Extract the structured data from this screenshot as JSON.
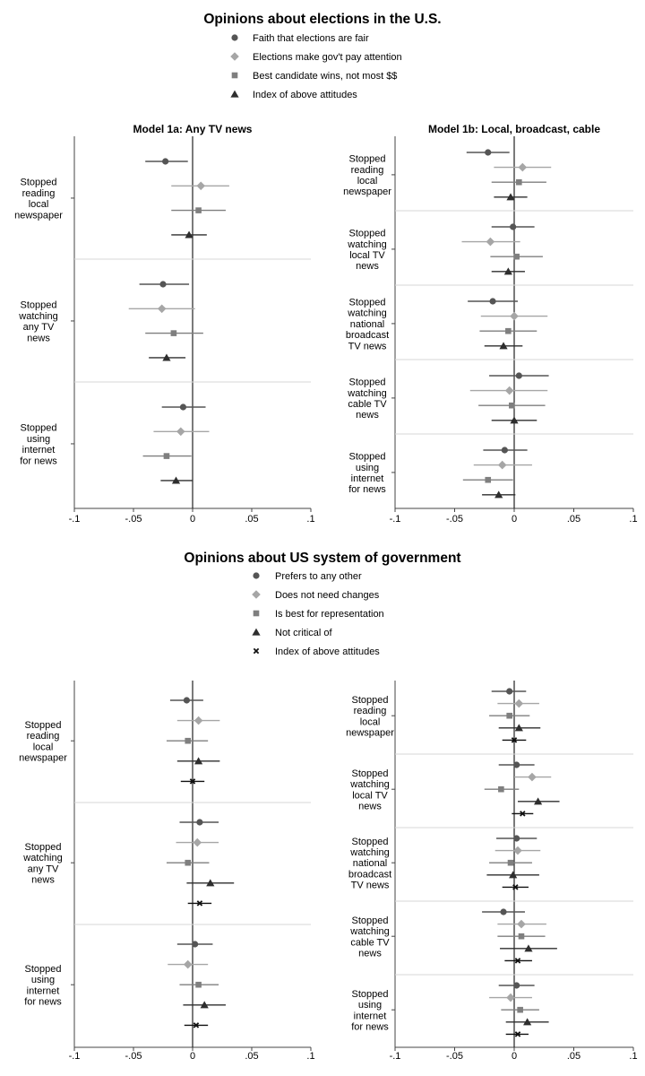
{
  "colors": {
    "circle": "#555555",
    "diamond": "#a6a6a6",
    "square": "#7f7f7f",
    "triangle": "#2e2e2e",
    "cross": "#111111",
    "zero": "#222222",
    "frame": "#444444",
    "sep": "#d7d7d7"
  },
  "chart_data": [
    {
      "type": "scatter",
      "style": "coefficient-plot",
      "title": "Opinions about elections in the U.S.",
      "subtitle": "Model 1a: Any TV news",
      "legend": [
        {
          "name": "Faith that elections are fair",
          "marker": "circle"
        },
        {
          "name": "Elections make gov't pay attention",
          "marker": "diamond"
        },
        {
          "name": "Best candidate wins, not most $$",
          "marker": "square"
        },
        {
          "name": "Index of above attitudes",
          "marker": "triangle"
        }
      ],
      "xlim": [
        -0.1,
        0.1
      ],
      "ticks": [
        "-.1",
        "-.05",
        "0",
        ".05",
        ".1"
      ],
      "groups": [
        {
          "label": [
            "Stopped",
            "reading",
            "local",
            "newspaper"
          ],
          "points": [
            {
              "marker": "circle",
              "est": -0.023,
              "lo": -0.04,
              "hi": -0.004
            },
            {
              "marker": "diamond",
              "est": 0.007,
              "lo": -0.018,
              "hi": 0.031
            },
            {
              "marker": "square",
              "est": 0.005,
              "lo": -0.018,
              "hi": 0.028
            },
            {
              "marker": "triangle",
              "est": -0.003,
              "lo": -0.018,
              "hi": 0.012
            }
          ]
        },
        {
          "label": [
            "Stopped",
            "watching",
            "any TV",
            "news"
          ],
          "points": [
            {
              "marker": "circle",
              "est": -0.025,
              "lo": -0.045,
              "hi": -0.003
            },
            {
              "marker": "diamond",
              "est": -0.026,
              "lo": -0.054,
              "hi": 0.002
            },
            {
              "marker": "square",
              "est": -0.016,
              "lo": -0.04,
              "hi": 0.009
            },
            {
              "marker": "triangle",
              "est": -0.022,
              "lo": -0.037,
              "hi": -0.006
            }
          ]
        },
        {
          "label": [
            "Stopped",
            "using",
            "internet",
            "for news"
          ],
          "points": [
            {
              "marker": "circle",
              "est": -0.008,
              "lo": -0.026,
              "hi": 0.011
            },
            {
              "marker": "diamond",
              "est": -0.01,
              "lo": -0.033,
              "hi": 0.014
            },
            {
              "marker": "square",
              "est": -0.022,
              "lo": -0.042,
              "hi": -0.001
            },
            {
              "marker": "triangle",
              "est": -0.014,
              "lo": -0.027,
              "hi": 0.0
            }
          ]
        }
      ]
    },
    {
      "type": "scatter",
      "style": "coefficient-plot",
      "subtitle": "Model 1b: Local, broadcast, cable",
      "xlim": [
        -0.1,
        0.1
      ],
      "ticks": [
        "-.1",
        "-.05",
        "0",
        ".05",
        ".1"
      ],
      "groups": [
        {
          "label": [
            "Stopped",
            "reading",
            "local",
            "newspaper"
          ],
          "points": [
            {
              "marker": "circle",
              "est": -0.022,
              "lo": -0.04,
              "hi": -0.004
            },
            {
              "marker": "diamond",
              "est": 0.007,
              "lo": -0.017,
              "hi": 0.031
            },
            {
              "marker": "square",
              "est": 0.004,
              "lo": -0.019,
              "hi": 0.027
            },
            {
              "marker": "triangle",
              "est": -0.003,
              "lo": -0.017,
              "hi": 0.011
            }
          ]
        },
        {
          "label": [
            "Stopped",
            "watching",
            "local TV",
            "news"
          ],
          "points": [
            {
              "marker": "circle",
              "est": -0.001,
              "lo": -0.019,
              "hi": 0.017
            },
            {
              "marker": "diamond",
              "est": -0.02,
              "lo": -0.044,
              "hi": 0.005
            },
            {
              "marker": "square",
              "est": 0.002,
              "lo": -0.02,
              "hi": 0.024
            },
            {
              "marker": "triangle",
              "est": -0.005,
              "lo": -0.019,
              "hi": 0.009
            }
          ]
        },
        {
          "label": [
            "Stopped",
            "watching",
            "national",
            "broadcast",
            "TV news"
          ],
          "points": [
            {
              "marker": "circle",
              "est": -0.018,
              "lo": -0.039,
              "hi": 0.003
            },
            {
              "marker": "diamond",
              "est": 0.0,
              "lo": -0.028,
              "hi": 0.028
            },
            {
              "marker": "square",
              "est": -0.005,
              "lo": -0.029,
              "hi": 0.019
            },
            {
              "marker": "triangle",
              "est": -0.009,
              "lo": -0.025,
              "hi": 0.007
            }
          ]
        },
        {
          "label": [
            "Stopped",
            "watching",
            "cable TV",
            "news"
          ],
          "points": [
            {
              "marker": "circle",
              "est": 0.004,
              "lo": -0.021,
              "hi": 0.029
            },
            {
              "marker": "diamond",
              "est": -0.004,
              "lo": -0.037,
              "hi": 0.028
            },
            {
              "marker": "square",
              "est": -0.002,
              "lo": -0.03,
              "hi": 0.026
            },
            {
              "marker": "triangle",
              "est": 0.0,
              "lo": -0.019,
              "hi": 0.019
            }
          ]
        },
        {
          "label": [
            "Stopped",
            "using",
            "internet",
            "for news"
          ],
          "points": [
            {
              "marker": "circle",
              "est": -0.008,
              "lo": -0.026,
              "hi": 0.011
            },
            {
              "marker": "diamond",
              "est": -0.01,
              "lo": -0.034,
              "hi": 0.015
            },
            {
              "marker": "square",
              "est": -0.022,
              "lo": -0.043,
              "hi": -0.001
            },
            {
              "marker": "triangle",
              "est": -0.013,
              "lo": -0.027,
              "hi": 0.001
            }
          ]
        }
      ]
    },
    {
      "type": "scatter",
      "style": "coefficient-plot",
      "title": "Opinions about US system of government",
      "legend": [
        {
          "name": "Prefers to any other",
          "marker": "circle"
        },
        {
          "name": "Does not need changes",
          "marker": "diamond"
        },
        {
          "name": "Is best for representation",
          "marker": "square"
        },
        {
          "name": "Not critical of",
          "marker": "triangle"
        },
        {
          "name": "Index of above attitudes",
          "marker": "cross"
        }
      ],
      "xlim": [
        -0.1,
        0.1
      ],
      "ticks": [
        "-.1",
        "-.05",
        "0",
        ".05",
        ".1"
      ],
      "groups": [
        {
          "label": [
            "Stopped",
            "reading",
            "local",
            "newspaper"
          ],
          "points": [
            {
              "marker": "circle",
              "est": -0.005,
              "lo": -0.019,
              "hi": 0.009
            },
            {
              "marker": "diamond",
              "est": 0.005,
              "lo": -0.013,
              "hi": 0.023
            },
            {
              "marker": "square",
              "est": -0.004,
              "lo": -0.022,
              "hi": 0.013
            },
            {
              "marker": "triangle",
              "est": 0.005,
              "lo": -0.013,
              "hi": 0.023
            },
            {
              "marker": "cross",
              "est": 0.0,
              "lo": -0.01,
              "hi": 0.01
            }
          ]
        },
        {
          "label": [
            "Stopped",
            "watching",
            "any TV",
            "news"
          ],
          "points": [
            {
              "marker": "circle",
              "est": 0.006,
              "lo": -0.011,
              "hi": 0.022
            },
            {
              "marker": "diamond",
              "est": 0.004,
              "lo": -0.014,
              "hi": 0.022
            },
            {
              "marker": "square",
              "est": -0.004,
              "lo": -0.022,
              "hi": 0.014
            },
            {
              "marker": "triangle",
              "est": 0.015,
              "lo": -0.005,
              "hi": 0.035
            },
            {
              "marker": "cross",
              "est": 0.006,
              "lo": -0.004,
              "hi": 0.016
            }
          ]
        },
        {
          "label": [
            "Stopped",
            "using",
            "internet",
            "for news"
          ],
          "points": [
            {
              "marker": "circle",
              "est": 0.002,
              "lo": -0.013,
              "hi": 0.017
            },
            {
              "marker": "diamond",
              "est": -0.004,
              "lo": -0.021,
              "hi": 0.013
            },
            {
              "marker": "square",
              "est": 0.005,
              "lo": -0.011,
              "hi": 0.022
            },
            {
              "marker": "triangle",
              "est": 0.01,
              "lo": -0.008,
              "hi": 0.028
            },
            {
              "marker": "cross",
              "est": 0.003,
              "lo": -0.007,
              "hi": 0.013
            }
          ]
        }
      ]
    },
    {
      "type": "scatter",
      "style": "coefficient-plot",
      "xlim": [
        -0.1,
        0.1
      ],
      "ticks": [
        "-.1",
        "-.05",
        "0",
        ".05",
        ".1"
      ],
      "groups": [
        {
          "label": [
            "Stopped",
            "reading",
            "local",
            "newspaper"
          ],
          "points": [
            {
              "marker": "circle",
              "est": -0.004,
              "lo": -0.019,
              "hi": 0.01
            },
            {
              "marker": "diamond",
              "est": 0.004,
              "lo": -0.014,
              "hi": 0.021
            },
            {
              "marker": "square",
              "est": -0.004,
              "lo": -0.021,
              "hi": 0.013
            },
            {
              "marker": "triangle",
              "est": 0.004,
              "lo": -0.013,
              "hi": 0.022
            },
            {
              "marker": "cross",
              "est": 0.0,
              "lo": -0.01,
              "hi": 0.01
            }
          ]
        },
        {
          "label": [
            "Stopped",
            "watching",
            "local TV",
            "news"
          ],
          "points": [
            {
              "marker": "circle",
              "est": 0.002,
              "lo": -0.013,
              "hi": 0.017
            },
            {
              "marker": "diamond",
              "est": 0.015,
              "lo": 0.0,
              "hi": 0.031
            },
            {
              "marker": "square",
              "est": -0.011,
              "lo": -0.025,
              "hi": 0.004
            },
            {
              "marker": "triangle",
              "est": 0.02,
              "lo": 0.003,
              "hi": 0.038
            },
            {
              "marker": "cross",
              "est": 0.007,
              "lo": -0.002,
              "hi": 0.016
            }
          ]
        },
        {
          "label": [
            "Stopped",
            "watching",
            "national",
            "broadcast",
            "TV news"
          ],
          "points": [
            {
              "marker": "circle",
              "est": 0.002,
              "lo": -0.015,
              "hi": 0.019
            },
            {
              "marker": "diamond",
              "est": 0.003,
              "lo": -0.016,
              "hi": 0.022
            },
            {
              "marker": "square",
              "est": -0.003,
              "lo": -0.021,
              "hi": 0.015
            },
            {
              "marker": "triangle",
              "est": -0.001,
              "lo": -0.023,
              "hi": 0.021
            },
            {
              "marker": "cross",
              "est": 0.001,
              "lo": -0.01,
              "hi": 0.012
            }
          ]
        },
        {
          "label": [
            "Stopped",
            "watching",
            "cable TV",
            "news"
          ],
          "points": [
            {
              "marker": "circle",
              "est": -0.009,
              "lo": -0.027,
              "hi": 0.009
            },
            {
              "marker": "diamond",
              "est": 0.006,
              "lo": -0.014,
              "hi": 0.027
            },
            {
              "marker": "square",
              "est": 0.006,
              "lo": -0.014,
              "hi": 0.026
            },
            {
              "marker": "triangle",
              "est": 0.012,
              "lo": -0.012,
              "hi": 0.036
            },
            {
              "marker": "cross",
              "est": 0.003,
              "lo": -0.008,
              "hi": 0.015
            }
          ]
        },
        {
          "label": [
            "Stopped",
            "using",
            "internet",
            "for news"
          ],
          "points": [
            {
              "marker": "circle",
              "est": 0.002,
              "lo": -0.013,
              "hi": 0.017
            },
            {
              "marker": "diamond",
              "est": -0.003,
              "lo": -0.021,
              "hi": 0.015
            },
            {
              "marker": "square",
              "est": 0.005,
              "lo": -0.011,
              "hi": 0.021
            },
            {
              "marker": "triangle",
              "est": 0.011,
              "lo": -0.007,
              "hi": 0.029
            },
            {
              "marker": "cross",
              "est": 0.003,
              "lo": -0.007,
              "hi": 0.012
            }
          ]
        }
      ]
    }
  ]
}
